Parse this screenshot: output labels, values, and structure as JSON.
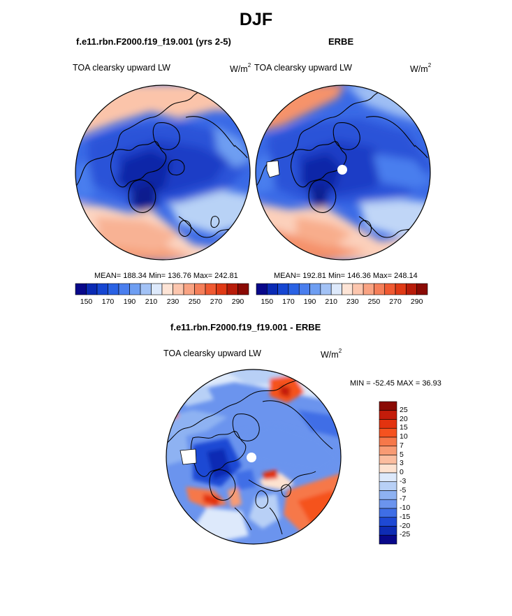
{
  "title": "DJF",
  "panels": {
    "model": {
      "title": "f.e11.rbn.F2000.f19_f19.001 (yrs 2-5)",
      "variable": "TOA clearsky upward LW",
      "units": "W/m",
      "units_exp": "2",
      "stats": "MEAN= 188.34  Min= 136.76  Max= 242.81"
    },
    "obs": {
      "title": "ERBE",
      "variable": "TOA clearsky upward LW",
      "units": "W/m",
      "units_exp": "2",
      "stats": "MEAN= 192.81  Min= 146.36  Max= 248.14"
    },
    "diff": {
      "title": "f.e11.rbn.F2000.f19_f19.001 - ERBE",
      "variable": "TOA clearsky upward LW",
      "units": "W/m",
      "units_exp": "2",
      "stats": "MIN = -52.45 MAX =  36.93"
    }
  },
  "colorbar_main": {
    "labels": [
      "150",
      "170",
      "190",
      "210",
      "230",
      "250",
      "270",
      "290"
    ],
    "colors": [
      "#08088a",
      "#0a2ab4",
      "#1646d2",
      "#2a62e4",
      "#4a7eee",
      "#6e9ef2",
      "#a2c2f6",
      "#dde9fb",
      "#fde4d6",
      "#fcc6ae",
      "#f9a383",
      "#f57f5a",
      "#f05a32",
      "#e03a16",
      "#b81c0a",
      "#8a0a04"
    ]
  },
  "colorbar_diff": {
    "labels": [
      "25",
      "20",
      "15",
      "10",
      "7",
      "5",
      "3",
      "0",
      "-3",
      "-5",
      "-7",
      "-10",
      "-15",
      "-20",
      "-25"
    ],
    "colors": [
      "#8a0a04",
      "#c41c0a",
      "#e3330f",
      "#f5521f",
      "#f6784a",
      "#f89b74",
      "#fbbd9f",
      "#fde2d0",
      "#dde9fb",
      "#b8d0f6",
      "#8eb2f2",
      "#6b94ee",
      "#3f6ee6",
      "#1e49d4",
      "#0e2cb4",
      "#08088a"
    ]
  }
}
